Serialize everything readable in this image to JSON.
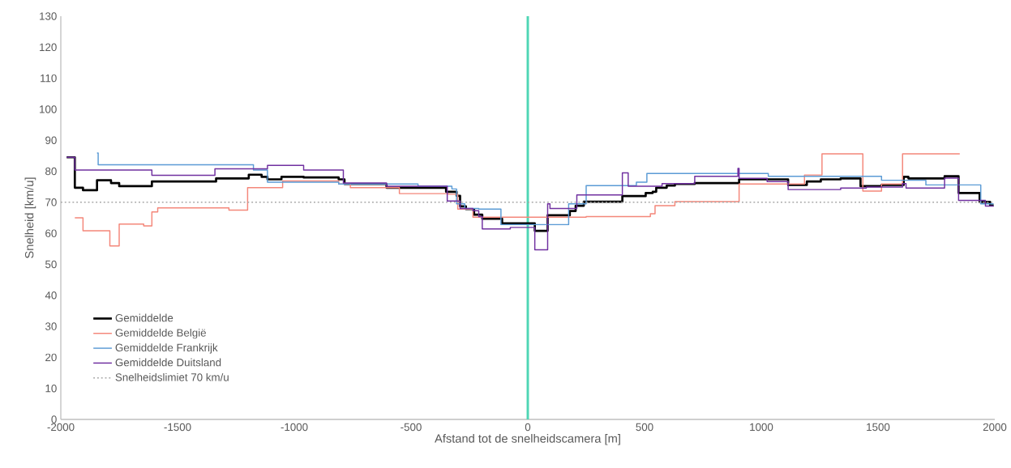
{
  "chart_data": {
    "type": "step",
    "xlabel": "Afstand tot de snelheidscamera [m]",
    "ylabel": "Snelheid [km/u]",
    "xlim": [
      -2000,
      2000
    ],
    "ylim": [
      0,
      130
    ],
    "xticks": [
      -2000,
      -1500,
      -1000,
      -500,
      0,
      500,
      1000,
      1500,
      2000
    ],
    "yticks": [
      0,
      10,
      20,
      30,
      40,
      50,
      60,
      70,
      80,
      90,
      100,
      110,
      120,
      130
    ],
    "legend": "bottom left",
    "ref_lines": [
      {
        "axis": "x",
        "value": 0,
        "color": "#4fd6b5"
      }
    ],
    "series": [
      {
        "name": "Gemiddelde",
        "color": "#000000",
        "line_style": "solid",
        "x": [
          -1975,
          -1940,
          -1905,
          -1845,
          -1785,
          -1750,
          -1610,
          -1335,
          -1195,
          -1140,
          -1115,
          -1055,
          -960,
          -810,
          -785,
          -605,
          -350,
          -305,
          -290,
          -265,
          -230,
          -195,
          -110,
          30,
          85,
          180,
          205,
          240,
          405,
          505,
          535,
          550,
          595,
          630,
          715,
          905,
          1115,
          1195,
          1255,
          1340,
          1425,
          1515,
          1610,
          1630,
          1785,
          1845,
          1935,
          1980,
          1995
        ],
        "values": [
          84.5,
          74.7,
          73.9,
          77.1,
          76.2,
          75.2,
          76.7,
          77.7,
          78.9,
          78.2,
          77.4,
          78.2,
          78.0,
          77.4,
          75.9,
          74.7,
          73.4,
          72.1,
          68.7,
          67.8,
          66.0,
          64.7,
          63.2,
          60.8,
          65.8,
          67.2,
          68.9,
          70.2,
          72.0,
          73.0,
          73.4,
          74.7,
          75.4,
          75.9,
          76.2,
          77.4,
          75.6,
          76.7,
          77.4,
          77.7,
          75.2,
          75.6,
          78.2,
          77.7,
          78.4,
          73.0,
          70.1,
          69.0,
          69.0
        ]
      },
      {
        "name": "Gemiddelde België",
        "color": "#f4877a",
        "line_style": "solid",
        "x": [
          -1940,
          -1905,
          -1790,
          -1750,
          -1645,
          -1610,
          -1585,
          -1280,
          -1200,
          -1050,
          -810,
          -760,
          -550,
          -340,
          -300,
          -235,
          250,
          525,
          545,
          630,
          905,
          1185,
          1260,
          1435,
          1515,
          1605,
          1850
        ],
        "values": [
          65,
          60.8,
          55.9,
          63,
          62.4,
          66.9,
          68.2,
          67.5,
          74.7,
          76.9,
          75.9,
          74.7,
          72.8,
          72.6,
          67.8,
          65.2,
          65.4,
          66.3,
          68.9,
          70.2,
          75.9,
          78.8,
          85.6,
          73.6,
          75.9,
          85.6,
          85.6
        ]
      },
      {
        "name": "Gemiddelde Frankrijk",
        "color": "#5b9bd5",
        "line_style": "solid",
        "x": [
          -1845,
          -1840,
          -1175,
          -1115,
          -810,
          -470,
          -325,
          -305,
          -270,
          -210,
          -115,
          175,
          250,
          465,
          510,
          1030,
          1515,
          1705,
          1940,
          1995
        ],
        "values": [
          85.9,
          82.1,
          80.4,
          76.5,
          75.9,
          75.2,
          74.3,
          69.5,
          68,
          67.8,
          62.8,
          69.5,
          75.4,
          76.5,
          79.3,
          78.4,
          77.1,
          75.6,
          69.5,
          69.5
        ]
      },
      {
        "name": "Gemiddelde Duitsland",
        "color": "#7030a0",
        "line_style": "solid",
        "x": [
          -1975,
          -1940,
          -1610,
          -1340,
          -1115,
          -960,
          -790,
          -605,
          -345,
          -290,
          -235,
          -210,
          -195,
          -75,
          30,
          85,
          95,
          210,
          405,
          430,
          575,
          715,
          900,
          905,
          1025,
          1115,
          1340,
          1450,
          1605,
          1620,
          1785,
          1845,
          1960,
          1995
        ],
        "values": [
          84.5,
          80.4,
          78.7,
          80.8,
          81.9,
          80.4,
          76.2,
          75.2,
          70.4,
          68,
          67.3,
          65.4,
          61.4,
          61.9,
          54.7,
          69.5,
          68,
          72.4,
          79.5,
          75.2,
          76,
          78.4,
          80.9,
          77.7,
          76.7,
          74.1,
          74.6,
          74.9,
          76,
          74.6,
          77.8,
          70.6,
          68.8,
          68.8
        ]
      },
      {
        "name": "Snelheidslimiet 70 km/u",
        "type": "line",
        "color": "#a6a6a6",
        "line_style": "dotted",
        "x": [
          -2000,
          2000
        ],
        "values": [
          70,
          70
        ]
      }
    ]
  }
}
